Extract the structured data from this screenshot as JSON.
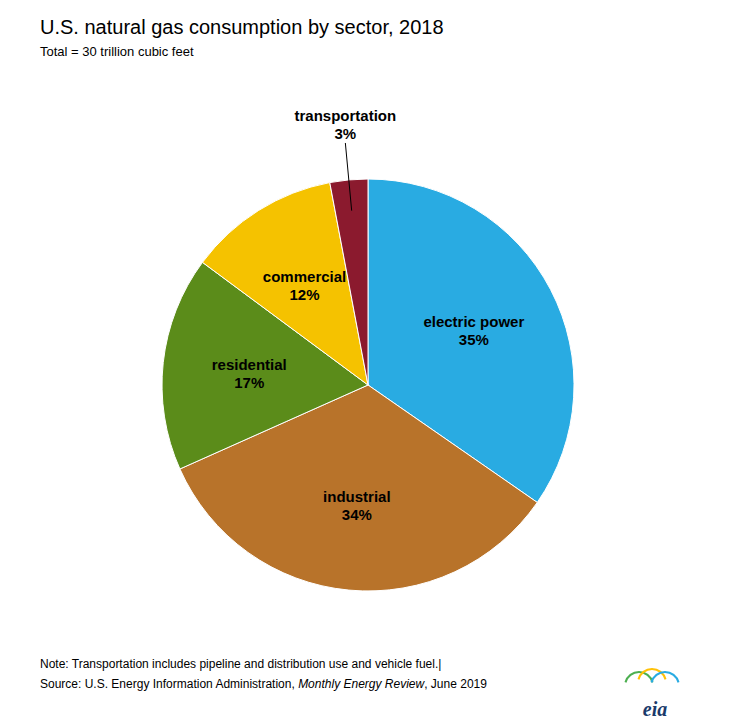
{
  "chart_data": {
    "type": "pie",
    "title": "U.S. natural gas consumption by sector, 2018",
    "subtitle": "Total = 30 trillion cubic feet",
    "categories": [
      "electric power",
      "industrial",
      "residential",
      "commercial",
      "transportation"
    ],
    "values": [
      35,
      34,
      17,
      12,
      3
    ],
    "value_labels": [
      "35%",
      "34%",
      "17%",
      "12%",
      "3%"
    ],
    "colors": [
      "#29ABE2",
      "#B8732A",
      "#5B8C1A",
      "#F5C200",
      "#8B1A2E"
    ],
    "data_labels": true,
    "note": "Note: Transportation includes pipeline and distribution use and vehicle fuel.|",
    "source": [
      "Source: U.S. Energy Information Administration, ",
      "Monthly Energy Review",
      ", June 2019"
    ],
    "logo_text": "eia"
  }
}
